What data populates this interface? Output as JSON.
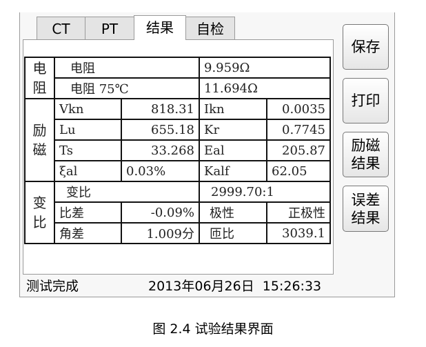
{
  "tabs": [
    "CT",
    "PT",
    "结果",
    "自检"
  ],
  "active_tab": "结果",
  "table": {
    "res_group": "电阻",
    "res_rows": [
      [
        "电阻",
        "9.959Ω"
      ],
      [
        "电阻 75℃",
        "11.694Ω"
      ]
    ],
    "exc_group": "励磁",
    "exc_rows": [
      [
        "Vkn",
        "818.31",
        "Ikn",
        "0.0035"
      ],
      [
        "Lu",
        "655.18",
        "Kr",
        "0.7745"
      ],
      [
        "Ts",
        "33.268",
        "Eal",
        "205.87"
      ],
      [
        "ξal",
        "0.03%",
        "Kalf",
        "62.05"
      ]
    ],
    "ratio_group": "变比",
    "ratio_row": [
      "变比",
      "2999.70:1"
    ],
    "ratio_rows": [
      [
        "比差",
        "-0.09%",
        "极性",
        "正极性"
      ],
      [
        "角差",
        "1.009分",
        "匝比",
        "3039.1"
      ]
    ]
  },
  "buttons": [
    "保存",
    "打印",
    "励磁结果",
    "误差结果"
  ],
  "status": {
    "text": "测试完成",
    "datetime": "2013年06月26日  15:26:33"
  },
  "caption": "图 2.4  试验结果界面"
}
